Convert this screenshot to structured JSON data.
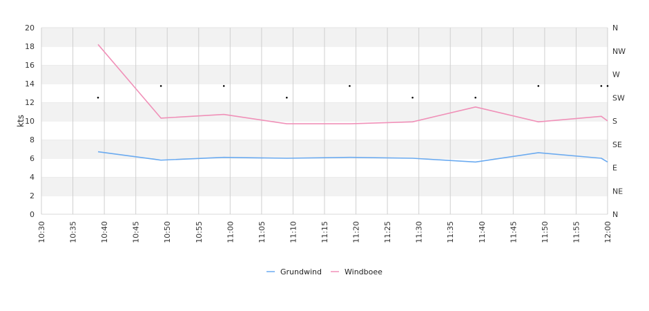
{
  "chart_data": {
    "type": "line",
    "title": "",
    "ylabel": "kts",
    "ylim": [
      0,
      20
    ],
    "y_ticks": [
      0,
      2,
      4,
      6,
      8,
      10,
      12,
      14,
      16,
      18,
      20
    ],
    "x_ticks": [
      "10:30",
      "10:35",
      "10:40",
      "10:45",
      "10:50",
      "10:55",
      "11:00",
      "11:05",
      "11:10",
      "11:15",
      "11:20",
      "11:25",
      "11:30",
      "11:35",
      "11:40",
      "11:45",
      "11:50",
      "11:55",
      "12:00"
    ],
    "xlim": [
      "10:30",
      "12:00"
    ],
    "right_axis": {
      "labels": [
        "N",
        "NE",
        "E",
        "SE",
        "S",
        "SW",
        "W",
        "NW",
        "N"
      ],
      "range_degrees": [
        0,
        360
      ]
    },
    "series": [
      {
        "name": "Grundwind",
        "color": "#6aaaf0",
        "x": [
          "10:39",
          "10:49",
          "10:59",
          "11:09",
          "11:19",
          "11:29",
          "11:39",
          "11:49",
          "11:59",
          "12:00"
        ],
        "values": [
          6.7,
          5.8,
          6.1,
          6.0,
          6.1,
          6.0,
          5.6,
          6.6,
          6.0,
          5.6
        ]
      },
      {
        "name": "Windboee",
        "color": "#f090b8",
        "x": [
          "10:39",
          "10:49",
          "10:59",
          "11:09",
          "11:19",
          "11:29",
          "11:39",
          "11:49",
          "11:59",
          "12:00"
        ],
        "values": [
          18.2,
          10.3,
          10.7,
          9.7,
          9.7,
          9.9,
          11.5,
          9.9,
          10.5,
          10.0
        ]
      }
    ],
    "direction_points": {
      "x": [
        "10:39",
        "10:49",
        "10:59",
        "11:09",
        "11:19",
        "11:29",
        "11:39",
        "11:49",
        "11:59",
        "12:00"
      ],
      "degrees": [
        225,
        247.5,
        247.5,
        225,
        247.5,
        225,
        225,
        247.5,
        247.5,
        247.5
      ]
    },
    "legend": {
      "position": "bottom-center"
    },
    "grid": true
  }
}
